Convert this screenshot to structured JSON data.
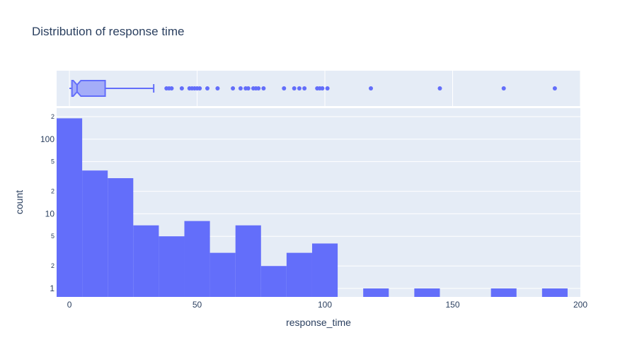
{
  "chart_data": {
    "type": "histogram",
    "title": "Distribution of response time",
    "xlabel": "response_time",
    "ylabel": "count",
    "yscale": "log",
    "xlim": [
      -5,
      200
    ],
    "ylim": [
      0.77,
      260
    ],
    "x_ticks": [
      0,
      50,
      100,
      150,
      200
    ],
    "y_major_ticks": [
      {
        "value": 1,
        "label": "1"
      },
      {
        "value": 10,
        "label": "10"
      },
      {
        "value": 100,
        "label": "100"
      }
    ],
    "y_minor_ticks": [
      {
        "value": 2,
        "label": "2"
      },
      {
        "value": 5,
        "label": "5"
      },
      {
        "value": 20,
        "label": "2"
      },
      {
        "value": 50,
        "label": "5"
      },
      {
        "value": 200,
        "label": "2"
      }
    ],
    "bin_width": 10,
    "bins": [
      {
        "x0": -5,
        "x1": 5,
        "count": 190
      },
      {
        "x0": 5,
        "x1": 15,
        "count": 38
      },
      {
        "x0": 15,
        "x1": 25,
        "count": 30
      },
      {
        "x0": 25,
        "x1": 35,
        "count": 7
      },
      {
        "x0": 35,
        "x1": 45,
        "count": 5
      },
      {
        "x0": 45,
        "x1": 55,
        "count": 8
      },
      {
        "x0": 55,
        "x1": 65,
        "count": 3
      },
      {
        "x0": 65,
        "x1": 75,
        "count": 7
      },
      {
        "x0": 75,
        "x1": 85,
        "count": 2
      },
      {
        "x0": 85,
        "x1": 95,
        "count": 3
      },
      {
        "x0": 95,
        "x1": 105,
        "count": 4
      },
      {
        "x0": 115,
        "x1": 125,
        "count": 1
      },
      {
        "x0": 135,
        "x1": 145,
        "count": 1
      },
      {
        "x0": 165,
        "x1": 175,
        "count": 1
      },
      {
        "x0": 185,
        "x1": 195,
        "count": 1
      }
    ],
    "boxplot": {
      "lowerfence": 0,
      "q1": 1,
      "median": 3,
      "q3": 14,
      "upperfence": 33,
      "notch_low": 1.5,
      "notch_high": 4.5,
      "outliers": [
        38,
        39,
        40,
        44,
        47,
        48,
        49,
        50,
        51,
        54,
        58,
        64,
        67,
        69,
        70,
        72,
        73,
        74,
        76,
        84,
        88,
        90,
        92,
        97,
        98,
        99,
        101,
        118,
        145,
        170,
        190
      ]
    },
    "colors": {
      "bar": "#636efa",
      "box_fill": "rgba(99,110,250,0.5)",
      "box_line": "#636efa",
      "plot_bg": "#e5ecf6",
      "grid": "#ffffff",
      "text": "#2a3f5f"
    },
    "grid": true
  }
}
